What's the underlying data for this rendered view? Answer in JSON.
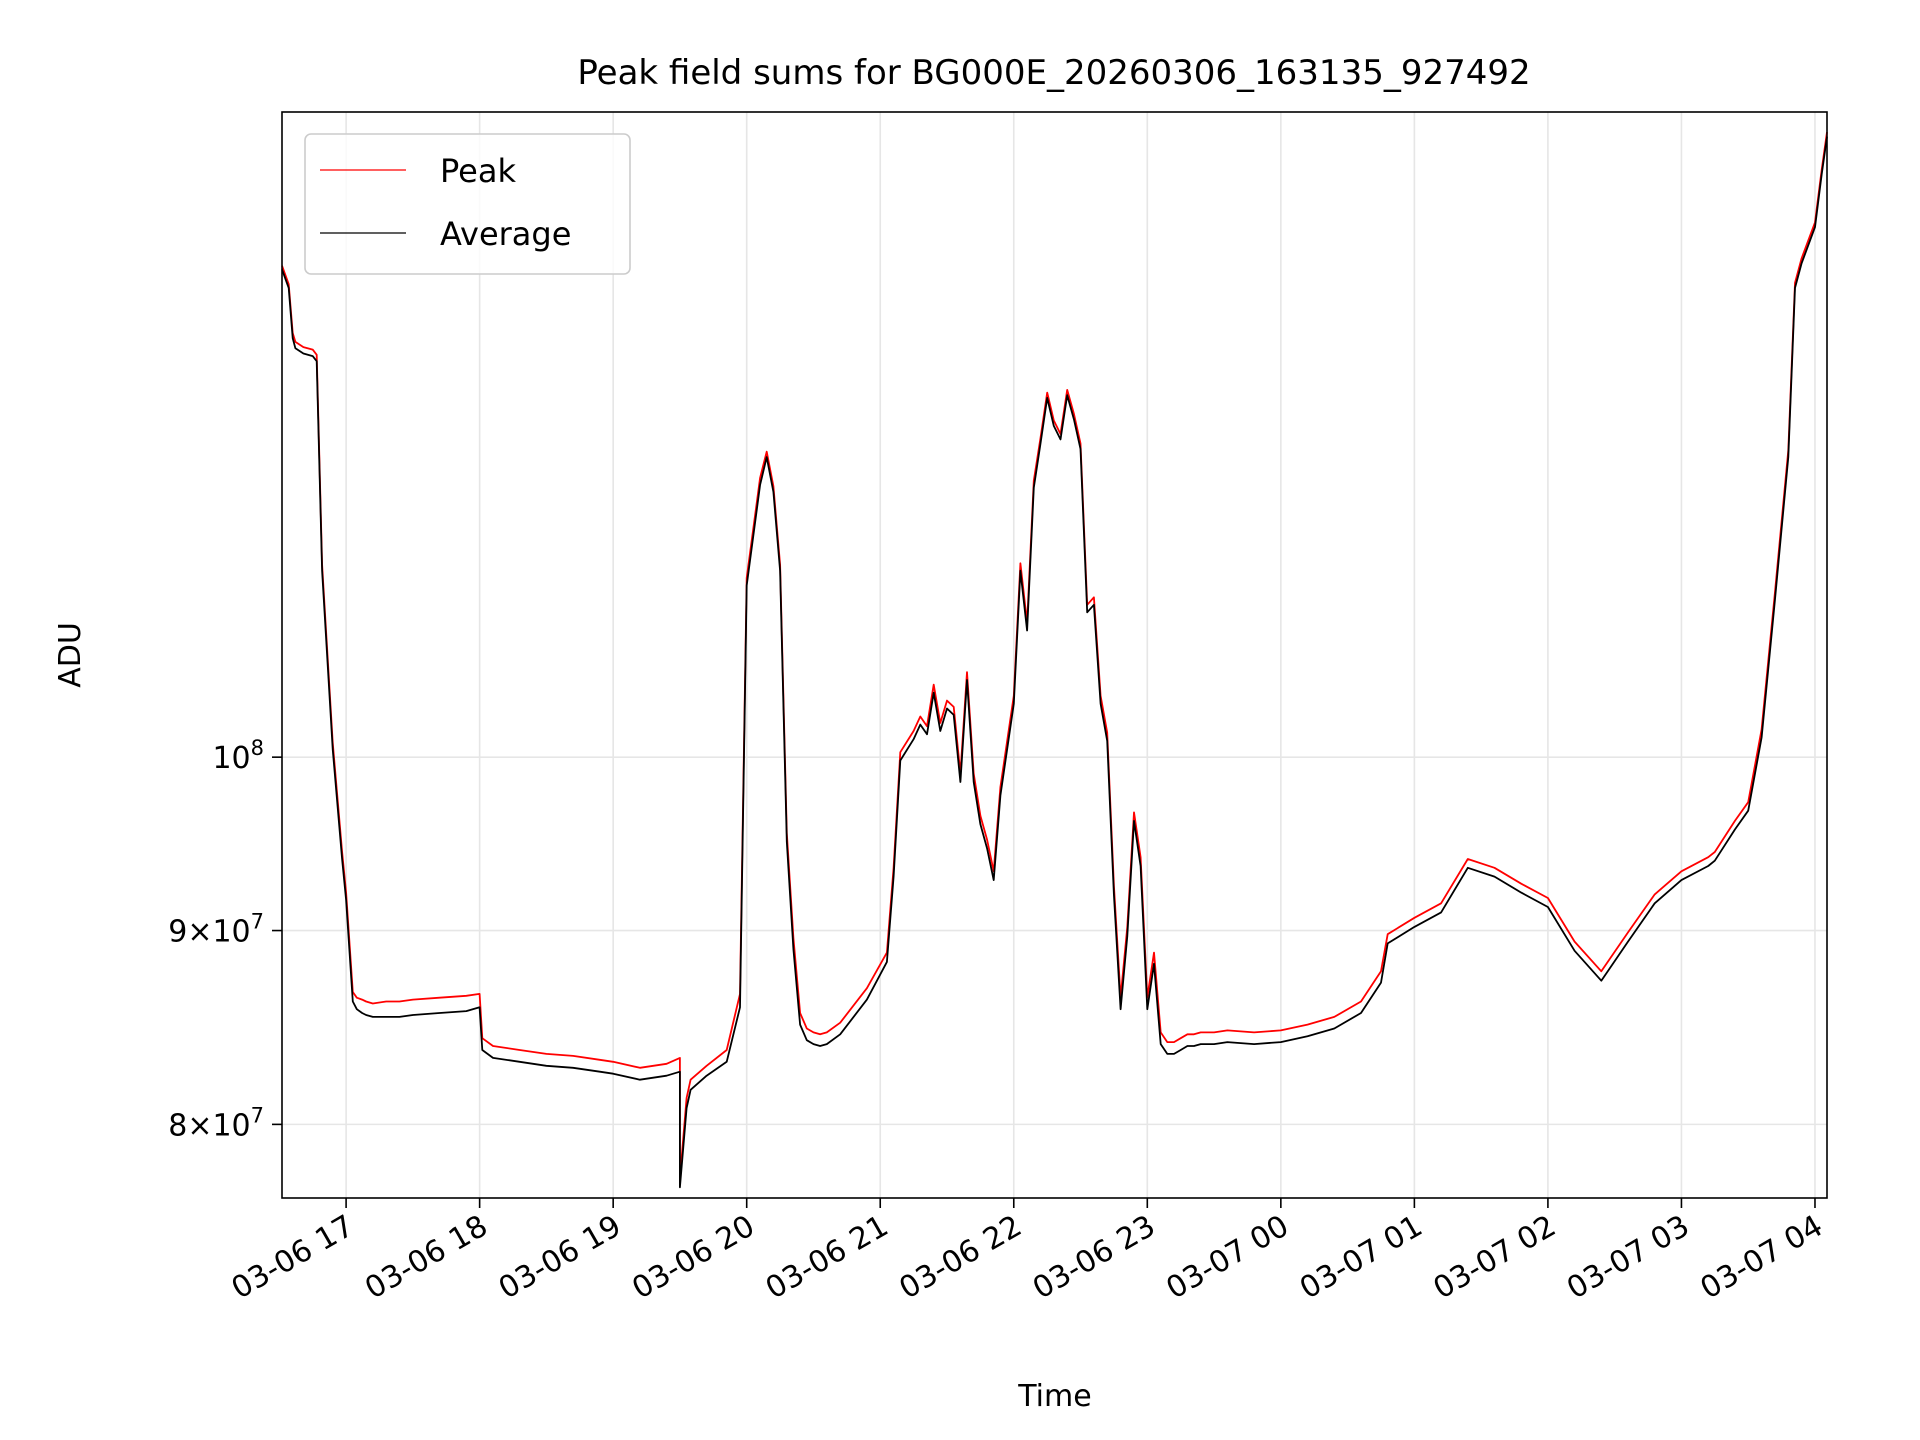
{
  "chart_data": {
    "type": "line",
    "title": "Peak field sums for BG000E_20260306_163135_927492",
    "xlabel": "Time",
    "ylabel": "ADU",
    "yscale": "log",
    "ylim": [
      76500000,
      148000000
    ],
    "xlim_hours": [
      16.52,
      28.09
    ],
    "grid": true,
    "legend": {
      "position": "top-left",
      "entries": [
        "Peak",
        "Average"
      ]
    },
    "colors": {
      "Peak": "#ff0000",
      "Average": "#000000",
      "grid": "#e6e6e6"
    },
    "x_ticks": [
      {
        "hour": 17,
        "label": "03-06 17"
      },
      {
        "hour": 18,
        "label": "03-06 18"
      },
      {
        "hour": 19,
        "label": "03-06 19"
      },
      {
        "hour": 20,
        "label": "03-06 20"
      },
      {
        "hour": 21,
        "label": "03-06 21"
      },
      {
        "hour": 22,
        "label": "03-06 22"
      },
      {
        "hour": 23,
        "label": "03-06 23"
      },
      {
        "hour": 24,
        "label": "03-07 00"
      },
      {
        "hour": 25,
        "label": "03-07 01"
      },
      {
        "hour": 26,
        "label": "03-07 02"
      },
      {
        "hour": 27,
        "label": "03-07 03"
      },
      {
        "hour": 28,
        "label": "03-07 04"
      }
    ],
    "y_ticks": [
      {
        "value": 80000000,
        "base": "8",
        "exp": "7"
      },
      {
        "value": 90000000,
        "base": "9",
        "exp": "7"
      },
      {
        "value": 100000000,
        "base": "10",
        "exp": "8"
      }
    ],
    "series": [
      {
        "name": "Average",
        "x_hours": [
          16.52,
          16.57,
          16.6,
          16.62,
          16.68,
          16.75,
          16.78,
          16.82,
          16.9,
          16.97,
          17.0,
          17.05,
          17.08,
          17.12,
          17.15,
          17.2,
          17.3,
          17.4,
          17.5,
          17.7,
          17.9,
          18.0,
          18.02,
          18.1,
          18.3,
          18.5,
          18.7,
          18.9,
          19.0,
          19.2,
          19.4,
          19.5,
          19.5,
          19.55,
          19.58,
          19.7,
          19.85,
          19.95,
          20.0,
          20.1,
          20.15,
          20.2,
          20.25,
          20.3,
          20.35,
          20.4,
          20.45,
          20.5,
          20.55,
          20.6,
          20.7,
          20.9,
          21.05,
          21.1,
          21.15,
          21.25,
          21.3,
          21.35,
          21.4,
          21.45,
          21.5,
          21.55,
          21.6,
          21.65,
          21.7,
          21.75,
          21.8,
          21.85,
          21.9,
          22.0,
          22.05,
          22.1,
          22.15,
          22.2,
          22.25,
          22.3,
          22.35,
          22.4,
          22.45,
          22.5,
          22.55,
          22.6,
          22.65,
          22.7,
          22.75,
          22.8,
          22.85,
          22.9,
          22.95,
          23.0,
          23.05,
          23.1,
          23.15,
          23.2,
          23.25,
          23.3,
          23.35,
          23.4,
          23.5,
          23.6,
          23.8,
          24.0,
          24.2,
          24.4,
          24.6,
          24.75,
          24.8,
          25.0,
          25.2,
          25.4,
          25.6,
          25.8,
          26.0,
          26.2,
          26.4,
          26.6,
          26.8,
          27.0,
          27.2,
          27.25,
          27.4,
          27.5,
          27.6,
          27.7,
          27.8,
          27.85,
          27.9,
          28.0,
          28.05,
          28.09
        ],
        "values": [
          134500000,
          133000000,
          129000000,
          128200000,
          127800000,
          127600000,
          127200000,
          112000000,
          100500000,
          94000000,
          91700000,
          86200000,
          85800000,
          85600000,
          85500000,
          85400000,
          85400000,
          85400000,
          85500000,
          85600000,
          85700000,
          85900000,
          83700000,
          83300000,
          83100000,
          82900000,
          82800000,
          82600000,
          82500000,
          82200000,
          82400000,
          82600000,
          77000000,
          80800000,
          81700000,
          82400000,
          83100000,
          85900000,
          111000000,
          118000000,
          120000000,
          117500000,
          112000000,
          95000000,
          89000000,
          85000000,
          84200000,
          84000000,
          83900000,
          84000000,
          84500000,
          86300000,
          88300000,
          93000000,
          99800000,
          101100000,
          102000000,
          101400000,
          104000000,
          101600000,
          103000000,
          102600000,
          98500000,
          104800000,
          98500000,
          96000000,
          94600000,
          92800000,
          97700000,
          103300000,
          112000000,
          108000000,
          117800000,
          121000000,
          124400000,
          122300000,
          121300000,
          124600000,
          122800000,
          120600000,
          109200000,
          109700000,
          103300000,
          101000000,
          92000000,
          85800000,
          89700000,
          96200000,
          93600000,
          85800000,
          88200000,
          84000000,
          83500000,
          83500000,
          83700000,
          83900000,
          83900000,
          84000000,
          84000000,
          84100000,
          84000000,
          84100000,
          84400000,
          84800000,
          85600000,
          87200000,
          89300000,
          90200000,
          91000000,
          93500000,
          93000000,
          92100000,
          91300000,
          88900000,
          87300000,
          89400000,
          91500000,
          92800000,
          93600000,
          93900000,
          95700000,
          96800000,
          101200000,
          110000000,
          120000000,
          133000000,
          135000000,
          138000000,
          142500000,
          145800000
        ]
      },
      {
        "name": "Peak",
        "x_hours": [
          16.52,
          16.57,
          16.6,
          16.62,
          16.68,
          16.75,
          16.78,
          16.82,
          16.9,
          16.97,
          17.0,
          17.05,
          17.08,
          17.12,
          17.15,
          17.2,
          17.3,
          17.4,
          17.5,
          17.7,
          17.9,
          18.0,
          18.02,
          18.1,
          18.3,
          18.5,
          18.7,
          18.9,
          19.0,
          19.2,
          19.4,
          19.5,
          19.5,
          19.55,
          19.58,
          19.7,
          19.85,
          19.95,
          20.0,
          20.1,
          20.15,
          20.2,
          20.25,
          20.3,
          20.35,
          20.4,
          20.45,
          20.5,
          20.55,
          20.6,
          20.7,
          20.9,
          21.05,
          21.1,
          21.15,
          21.25,
          21.3,
          21.35,
          21.4,
          21.45,
          21.5,
          21.55,
          21.6,
          21.65,
          21.7,
          21.75,
          21.8,
          21.85,
          21.9,
          22.0,
          22.05,
          22.1,
          22.15,
          22.2,
          22.25,
          22.3,
          22.35,
          22.4,
          22.45,
          22.5,
          22.55,
          22.6,
          22.65,
          22.7,
          22.75,
          22.8,
          22.85,
          22.9,
          22.95,
          23.0,
          23.05,
          23.1,
          23.15,
          23.2,
          23.25,
          23.3,
          23.35,
          23.4,
          23.5,
          23.6,
          23.8,
          24.0,
          24.2,
          24.4,
          24.6,
          24.75,
          24.8,
          25.0,
          25.2,
          25.4,
          25.6,
          25.8,
          26.0,
          26.2,
          26.4,
          26.6,
          26.8,
          27.0,
          27.2,
          27.25,
          27.4,
          27.5,
          27.6,
          27.7,
          27.8,
          27.85,
          27.9,
          28.0,
          28.05,
          28.09
        ],
        "values": [
          134800000,
          133300000,
          129400000,
          128700000,
          128300000,
          128100000,
          127700000,
          112400000,
          100900000,
          94400000,
          92100000,
          86700000,
          86400000,
          86300000,
          86200000,
          86100000,
          86200000,
          86200000,
          86300000,
          86400000,
          86500000,
          86600000,
          84300000,
          83900000,
          83700000,
          83500000,
          83400000,
          83200000,
          83100000,
          82800000,
          83000000,
          83300000,
          77400000,
          81300000,
          82200000,
          82900000,
          83700000,
          86600000,
          111500000,
          118500000,
          120400000,
          117900000,
          112400000,
          95500000,
          89600000,
          85600000,
          84800000,
          84600000,
          84500000,
          84600000,
          85100000,
          86900000,
          88800000,
          93500000,
          100300000,
          101600000,
          102500000,
          101900000,
          104500000,
          102100000,
          103500000,
          103100000,
          99000000,
          105300000,
          99000000,
          96500000,
          95100000,
          93300000,
          98200000,
          103800000,
          112500000,
          108500000,
          118300000,
          121400000,
          124800000,
          122700000,
          121700000,
          125000000,
          123200000,
          121000000,
          109700000,
          110200000,
          103800000,
          101500000,
          92500000,
          86400000,
          90200000,
          96700000,
          94100000,
          86400000,
          88800000,
          84600000,
          84100000,
          84100000,
          84300000,
          84500000,
          84500000,
          84600000,
          84600000,
          84700000,
          84600000,
          84700000,
          85000000,
          85400000,
          86200000,
          87800000,
          89800000,
          90700000,
          91500000,
          94000000,
          93500000,
          92600000,
          91800000,
          89400000,
          87800000,
          89900000,
          92000000,
          93300000,
          94100000,
          94400000,
          96200000,
          97300000,
          101700000,
          110500000,
          120500000,
          133400000,
          135400000,
          138400000,
          142900000,
          146200000
        ]
      }
    ]
  }
}
